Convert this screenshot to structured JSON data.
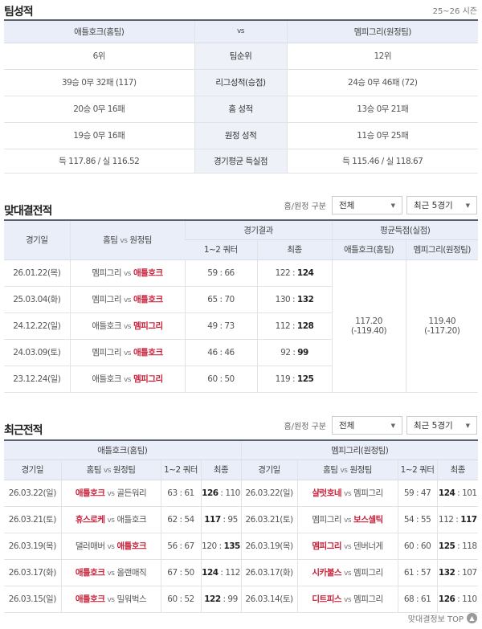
{
  "team_record": {
    "title": "팀성적",
    "season": "25~26 시즌",
    "home_header": "애틀호크(홈팀)",
    "vs": "vs",
    "away_header": "멤피그리(원정팀)",
    "rows": [
      {
        "label": "팀순위",
        "home": "6위",
        "away": "12위"
      },
      {
        "label": "리그성적(승점)",
        "home": "39승 0무 32패 (117)",
        "away": "24승 0무 46패 (72)"
      },
      {
        "label": "홈 성적",
        "home": "20승 0무 16패",
        "away": "13승 0무 21패"
      },
      {
        "label": "원정 성적",
        "home": "19승 0무 16패",
        "away": "11승 0무 25패"
      },
      {
        "label": "경기평균 득실점",
        "home": "득 117.86 / 실 116.52",
        "away": "득 115.46 / 실 118.67"
      }
    ]
  },
  "filters": {
    "label": "홈/원정 구분",
    "homeaway": "전체",
    "count": "최근 5경기"
  },
  "h2h": {
    "title": "맞대결전적",
    "headers": {
      "date": "경기일",
      "teams_home": "홈팀",
      "teams_vs": "vs",
      "teams_away": "원정팀",
      "result": "경기결과",
      "half": "1~2 쿼터",
      "final": "최종",
      "avg": "평균득점(실점)",
      "avg_home": "애틀호크(홈팀)",
      "avg_away": "멤피그리(원정팀)"
    },
    "rows": [
      {
        "date": "26.01.22(목)",
        "home": "멤피그리",
        "away": "애틀호크",
        "winner": "away",
        "half": "59 : 66",
        "final_home": "122",
        "final_away": "124"
      },
      {
        "date": "25.03.04(화)",
        "home": "멤피그리",
        "away": "애틀호크",
        "winner": "away",
        "half": "65 : 70",
        "final_home": "130",
        "final_away": "132"
      },
      {
        "date": "24.12.22(일)",
        "home": "애틀호크",
        "away": "멤피그리",
        "winner": "away",
        "half": "49 : 73",
        "final_home": "112",
        "final_away": "128"
      },
      {
        "date": "24.03.09(토)",
        "home": "멤피그리",
        "away": "애틀호크",
        "winner": "away",
        "half": "46 : 46",
        "final_home": "92",
        "final_away": "99"
      },
      {
        "date": "23.12.24(일)",
        "home": "애틀호크",
        "away": "멤피그리",
        "winner": "away",
        "half": "60 : 50",
        "final_home": "119",
        "final_away": "125"
      }
    ],
    "avg_home": "117.20",
    "avg_home_against": "(-119.40)",
    "avg_away": "119.40",
    "avg_away_against": "(-117.20)"
  },
  "recent": {
    "title": "최근전적",
    "home_group": "애틀호크(홈팀)",
    "away_group": "멤피그리(원정팀)",
    "headers": {
      "date": "경기일",
      "teams_home": "홈팀",
      "teams_vs": "vs",
      "teams_away": "원정팀",
      "half": "1~2 쿼터",
      "final": "최종"
    },
    "home_rows": [
      {
        "date": "26.03.22(일)",
        "home": "애틀호크",
        "away": "골든워리",
        "winner": "home",
        "half": "63 : 61",
        "final_home": "126",
        "final_away": "110"
      },
      {
        "date": "26.03.21(토)",
        "home": "휴스로케",
        "away": "애틀호크",
        "winner": "home",
        "half": "62 : 54",
        "final_home": "117",
        "final_away": "95"
      },
      {
        "date": "26.03.19(목)",
        "home": "댈러매버",
        "away": "애틀호크",
        "winner": "away",
        "half": "56 : 67",
        "final_home": "120",
        "final_away": "135"
      },
      {
        "date": "26.03.17(화)",
        "home": "애틀호크",
        "away": "올랜매직",
        "winner": "home",
        "half": "67 : 50",
        "final_home": "124",
        "final_away": "112"
      },
      {
        "date": "26.03.15(일)",
        "home": "애틀호크",
        "away": "밀워벅스",
        "winner": "home",
        "half": "60 : 52",
        "final_home": "122",
        "final_away": "99"
      }
    ],
    "away_rows": [
      {
        "date": "26.03.22(일)",
        "home": "샬럿호네",
        "away": "멤피그리",
        "winner": "home",
        "half": "59 : 47",
        "final_home": "124",
        "final_away": "101"
      },
      {
        "date": "26.03.21(토)",
        "home": "멤피그리",
        "away": "보스셀틱",
        "winner": "away",
        "half": "54 : 55",
        "final_home": "112",
        "final_away": "117"
      },
      {
        "date": "26.03.19(목)",
        "home": "멤피그리",
        "away": "덴버너게",
        "winner": "home",
        "half": "60 : 60",
        "final_home": "125",
        "final_away": "118"
      },
      {
        "date": "26.03.17(화)",
        "home": "시카불스",
        "away": "멤피그리",
        "winner": "home",
        "half": "61 : 57",
        "final_home": "132",
        "final_away": "107"
      },
      {
        "date": "26.03.14(토)",
        "home": "디트피스",
        "away": "멤피그리",
        "winner": "home",
        "half": "68 : 61",
        "final_home": "126",
        "final_away": "110"
      }
    ]
  },
  "footer": {
    "top_link": "맞대결정보 TOP",
    "icon": "arrow-up-icon"
  },
  "colors": {
    "winner": "#c8223a",
    "header_bg": "#e9eef8"
  }
}
